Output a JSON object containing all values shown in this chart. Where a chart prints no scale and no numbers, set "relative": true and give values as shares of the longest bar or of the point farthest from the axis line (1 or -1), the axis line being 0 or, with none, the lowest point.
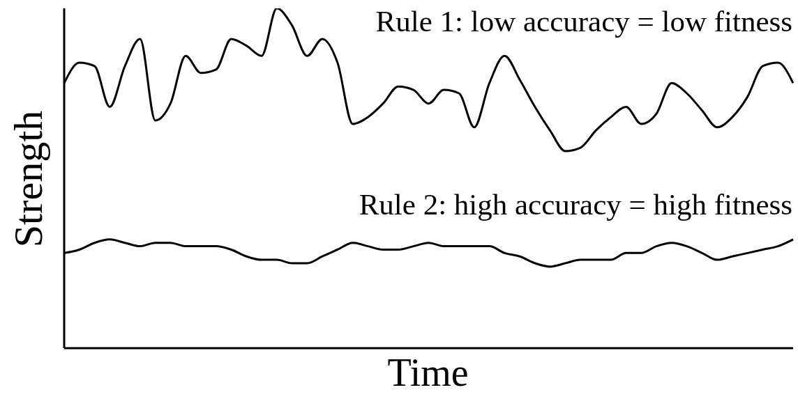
{
  "chart_data": {
    "type": "line",
    "relative": true,
    "xlabel": "Time",
    "ylabel": "Strength",
    "grid": false,
    "marker": "none",
    "line_style": "solid",
    "categories": [
      null,
      null,
      null,
      null,
      null,
      null,
      null,
      null,
      null,
      null,
      null,
      null,
      null,
      null,
      null,
      null,
      null,
      null,
      null,
      null,
      null,
      null,
      null,
      null,
      null,
      null,
      null,
      null,
      null,
      null,
      null,
      null,
      null,
      null,
      null,
      null,
      null,
      null,
      null,
      null,
      null,
      null,
      null,
      null,
      null,
      null,
      null,
      null,
      null
    ],
    "series": [
      {
        "name": "Rule 1: low accuracy = low fitness",
        "color": "#000000",
        "values": [
          0.78,
          0.84,
          0.83,
          0.71,
          0.83,
          0.91,
          0.67,
          0.72,
          0.86,
          0.81,
          0.82,
          0.91,
          0.89,
          0.86,
          1.0,
          0.95,
          0.86,
          0.91,
          0.84,
          0.66,
          0.68,
          0.72,
          0.77,
          0.76,
          0.72,
          0.76,
          0.75,
          0.65,
          0.78,
          0.86,
          0.79,
          0.71,
          0.64,
          0.58,
          0.59,
          0.64,
          0.68,
          0.71,
          0.66,
          0.69,
          0.78,
          0.75,
          0.7,
          0.65,
          0.68,
          0.74,
          0.83,
          0.84,
          0.78
        ]
      },
      {
        "name": "Rule 2: high accuracy = high fitness",
        "color": "#000000",
        "values": [
          0.28,
          0.29,
          0.31,
          0.32,
          0.31,
          0.3,
          0.31,
          0.31,
          0.3,
          0.3,
          0.3,
          0.29,
          0.27,
          0.26,
          0.26,
          0.25,
          0.25,
          0.27,
          0.29,
          0.31,
          0.3,
          0.29,
          0.29,
          0.3,
          0.31,
          0.3,
          0.3,
          0.3,
          0.3,
          0.28,
          0.27,
          0.25,
          0.24,
          0.25,
          0.26,
          0.26,
          0.26,
          0.28,
          0.28,
          0.3,
          0.31,
          0.3,
          0.28,
          0.26,
          0.27,
          0.28,
          0.29,
          0.3,
          0.32
        ]
      }
    ]
  }
}
